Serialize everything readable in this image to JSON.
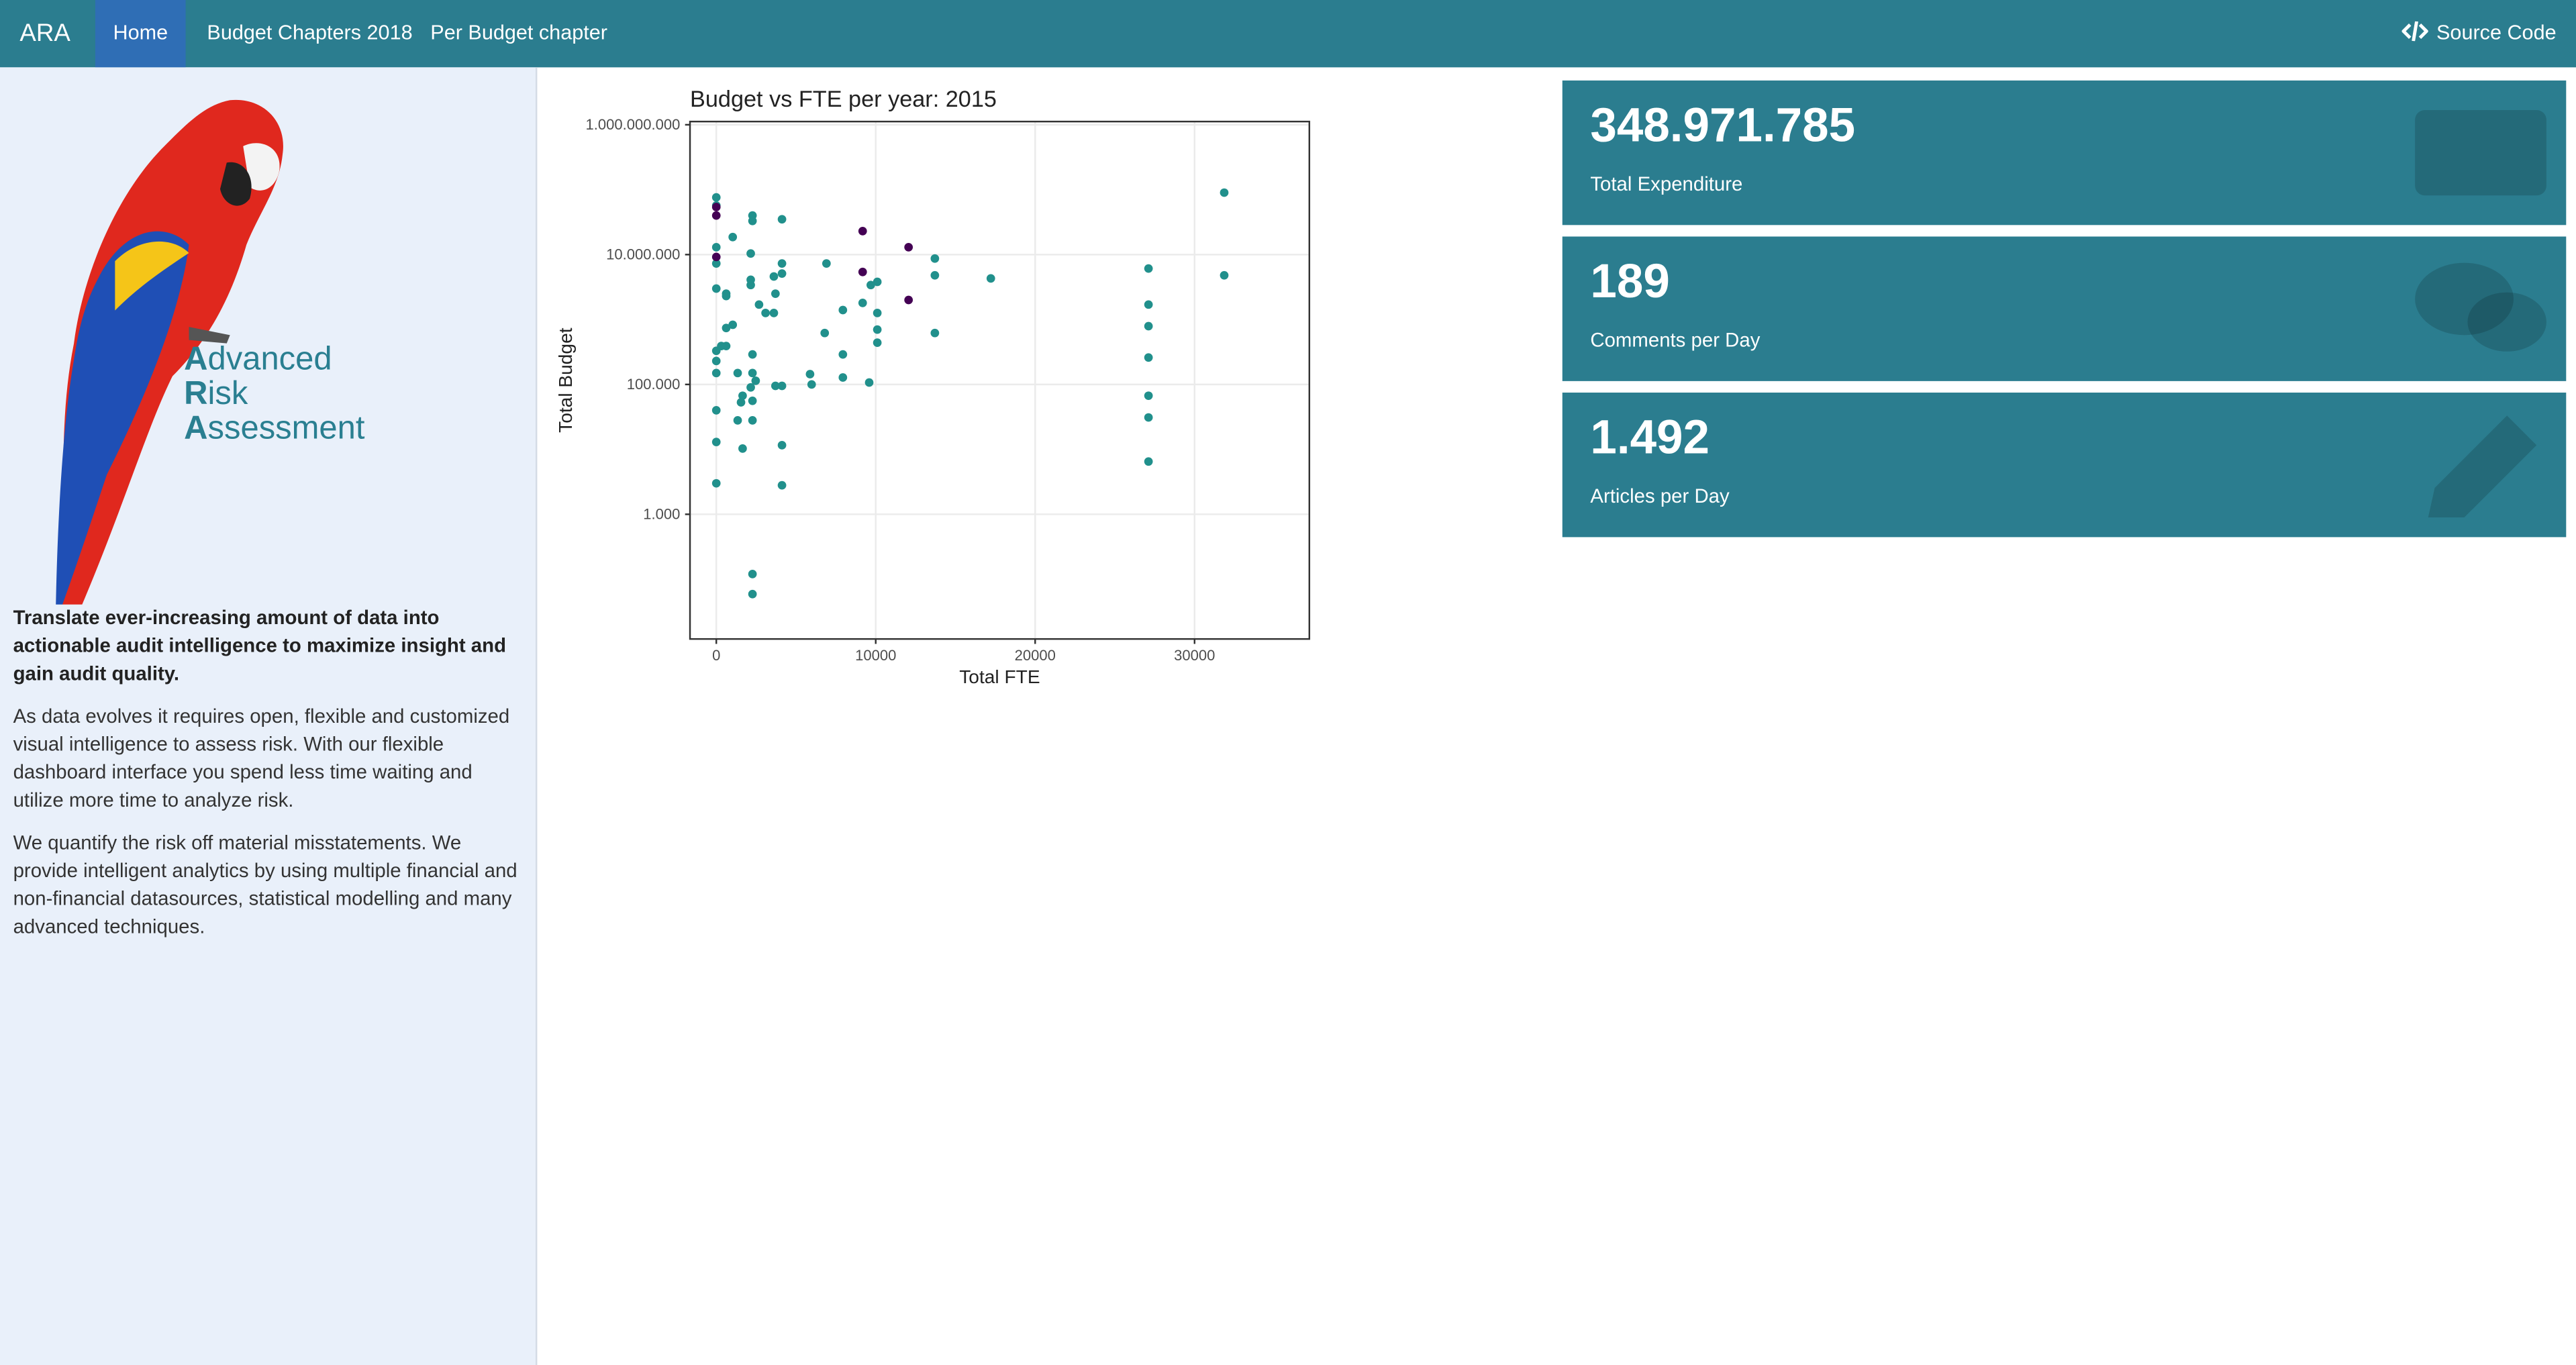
{
  "nav": {
    "brand": "ARA",
    "tabs": [
      "Home",
      "Budget Chapters 2018",
      "Per Budget chapter"
    ],
    "source": "Source Code"
  },
  "sidebar": {
    "logo": [
      "Advanced",
      "Risk",
      "Assessment"
    ],
    "intro": "Translate ever-increasing amount of data into actionable audit intelligence to maximize insight and gain audit quality.",
    "paragraphs": [
      "As data evolves it requires open, flexible and customized visual intelligence to assess risk. With our flexible dashboard interface you spend less time waiting and utilize more time to analyze risk.",
      "We quantify the risk off material misstatements. We provide intelligent analytics by using multiple financial and non-financial datasources, statistical modelling and many advanced techniques."
    ]
  },
  "value_boxes": [
    {
      "value": "348.971.785",
      "label": "Total Expenditure"
    },
    {
      "value": "189",
      "label": "Comments per Day"
    },
    {
      "value": "1.492",
      "label": "Articles per Day"
    }
  ],
  "chart_data": {
    "type": "scatter",
    "title": "Budget vs FTE per year: 2015",
    "x_label": "Total FTE",
    "y_label": "Total Budget",
    "xlim": [
      -1650,
      37200
    ],
    "ylim": [
      12,
      1120000000
    ],
    "log_y": true,
    "grid": true,
    "xticks": [
      0,
      10000,
      20000,
      30000
    ],
    "yticks": [
      {
        "value": 1000,
        "label": "1.000"
      },
      {
        "value": 100000,
        "label": "100.000"
      },
      {
        "value": 10000000,
        "label": "10.000.000"
      },
      {
        "value": 1000000000,
        "label": "1.000.000.000"
      }
    ],
    "series": [
      {
        "color": "#21908c",
        "x": [
          0,
          0,
          2270,
          2270,
          4120,
          1030,
          0,
          2160,
          0,
          4120,
          4120,
          3610,
          2160,
          2160,
          2680,
          0,
          620,
          620,
          3710,
          3090,
          3610,
          6910,
          7940,
          9180,
          9690,
          10100,
          10100,
          10100,
          10100,
          13710,
          13710,
          13710,
          17220,
          620,
          1030,
          310,
          620,
          0,
          0,
          1340,
          2270,
          2270,
          0,
          2470,
          2160,
          1650,
          1550,
          2270,
          3710,
          4120,
          5880,
          5980,
          7940,
          7940,
          9590,
          6800,
          0,
          1340,
          2270,
          0,
          1650,
          4120,
          0,
          4120,
          2270,
          2270,
          27110,
          27110,
          27110,
          27110,
          27110,
          27110,
          27110,
          31860,
          31860
        ],
        "values": [
          76000000,
          57000000,
          40000000,
          33000000,
          35000000,
          18600000,
          13000000,
          10400000,
          7300000,
          7300000,
          5100000,
          4600000,
          4100000,
          3400000,
          1700000,
          3000000,
          2500000,
          2300000,
          2500000,
          1260000,
          1260000,
          7300000,
          1400000,
          1800000,
          3400000,
          3800000,
          1260000,
          700000,
          440000,
          8700000,
          4800000,
          620000,
          4300000,
          740000,
          830000,
          390000,
          390000,
          330000,
          230000,
          150000,
          290000,
          150000,
          150000,
          114000,
          90000,
          67000,
          53000,
          56000,
          95000,
          95000,
          144000,
          100000,
          290000,
          128000,
          107000,
          620000,
          40000,
          28000,
          28000,
          13000,
          10300,
          11600,
          3000,
          2800,
          120,
          59,
          6100000,
          1700000,
          790000,
          260000,
          67000,
          31000,
          6500,
          90000000,
          4800000
        ]
      },
      {
        "color": "#440154",
        "x": [
          0,
          0,
          0,
          9180,
          12060,
          9180,
          12060
        ],
        "values": [
          54000000,
          40000000,
          9200000,
          23000000,
          13000000,
          5400000,
          2000000
        ]
      }
    ]
  }
}
